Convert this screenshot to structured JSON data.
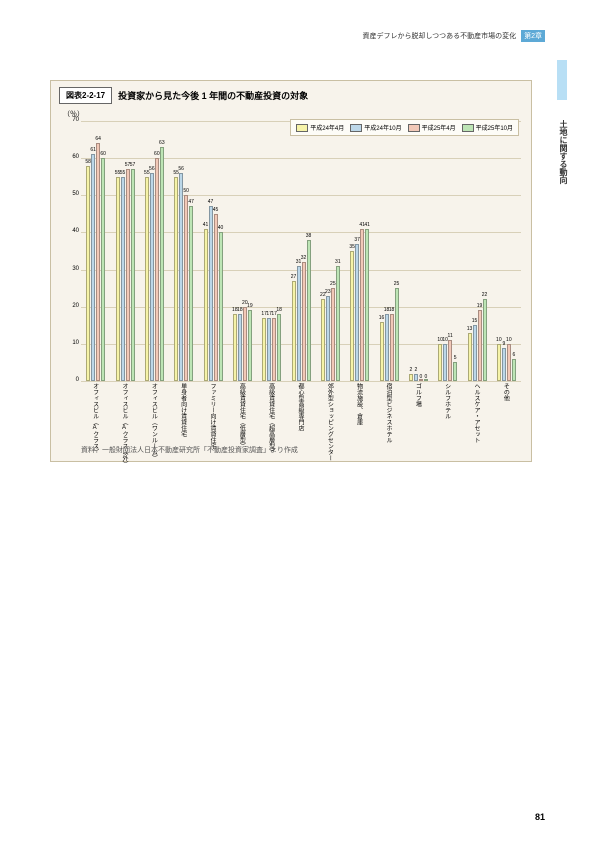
{
  "header": {
    "breadcrumb": "資産デフレから脱却しつつある不動産市場の変化",
    "chapter": "第2章"
  },
  "side": {
    "section_title": "土地に関する動向"
  },
  "chart": {
    "figure_label": "図表2-2-17",
    "title": "投資家から見た今後 1 年間の不動産投資の対象",
    "ylabel": "（％）",
    "source": "資料：一般財団法人日本不動産研究所「不動産投資家調査」より作成",
    "ylim": [
      0,
      70
    ],
    "ytick_step": 10,
    "series": [
      {
        "label": "平成24年4月",
        "color": "#f6f3a8"
      },
      {
        "label": "平成24年10月",
        "color": "#bcd7e8"
      },
      {
        "label": "平成25年4月",
        "color": "#f2c9b8"
      },
      {
        "label": "平成25年10月",
        "color": "#bde5b5"
      }
    ],
    "categories": [
      "オフィスビル（Aクラス）",
      "オフィスビル（Aクラス以外）",
      "オフィスビル（ワンルーム）",
      "単身者向け賃貸住宅",
      "ファミリー向け賃貸住宅",
      "高級賃貸住宅（低層型）",
      "高級賃貸住宅（超高層型）",
      "都心型高級専門店",
      "郊外型ショッピングセンター",
      "物流施設、倉庫",
      "宿泊型ビジネスホテル",
      "ゴルフ場",
      "シルフホテル",
      "ヘルスケア・アセット",
      "その他"
    ],
    "data": [
      [
        58,
        61,
        64,
        60
      ],
      [
        55,
        55,
        57,
        57
      ],
      [
        55,
        56,
        60,
        63
      ],
      [
        55,
        56,
        50,
        47
      ],
      [
        41,
        47,
        45,
        40
      ],
      [
        18,
        18,
        20,
        19
      ],
      [
        17,
        17,
        17,
        18
      ],
      [
        27,
        31,
        32,
        38
      ],
      [
        22,
        23,
        25,
        31
      ],
      [
        35,
        37,
        41,
        41
      ],
      [
        16,
        18,
        18,
        25
      ],
      [
        2,
        2,
        0,
        0
      ],
      [
        10,
        10,
        11,
        5
      ],
      [
        13,
        15,
        19,
        22
      ],
      [
        10,
        9,
        10,
        6
      ]
    ]
  },
  "page_number": "81"
}
